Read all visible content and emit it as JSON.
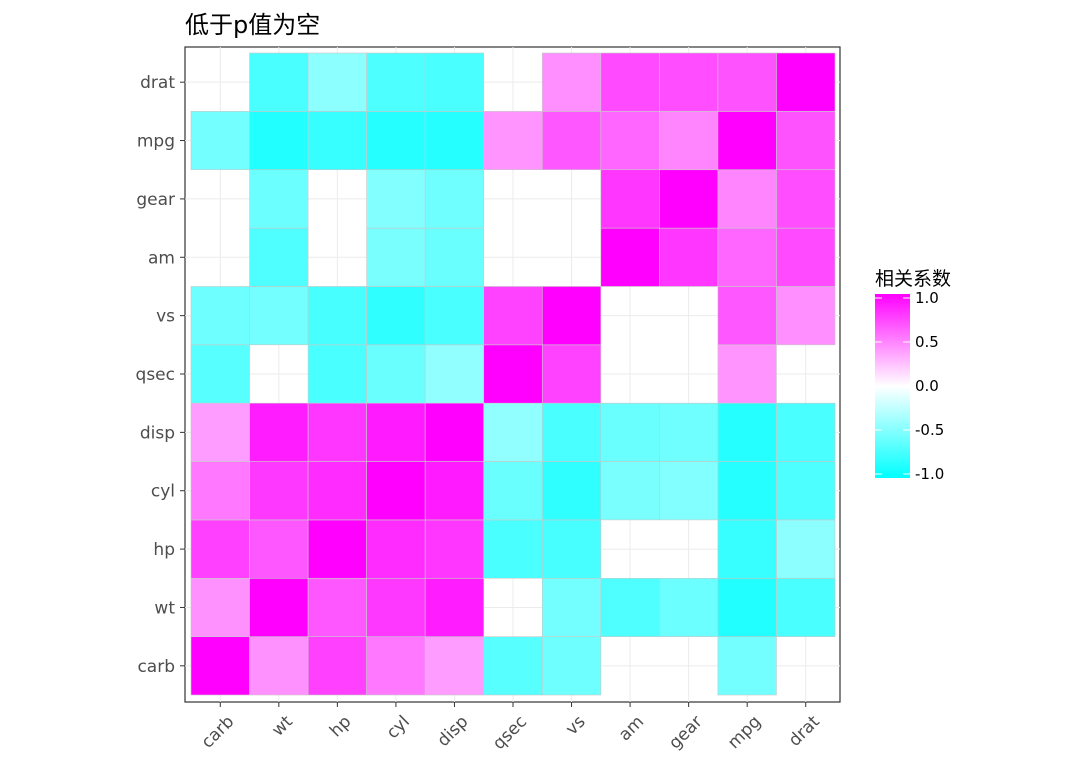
{
  "chart_data": {
    "type": "heatmap",
    "title": "低于p值为空",
    "x": [
      "carb",
      "wt",
      "hp",
      "cyl",
      "disp",
      "qsec",
      "vs",
      "am",
      "gear",
      "mpg",
      "drat"
    ],
    "y": [
      "carb",
      "wt",
      "hp",
      "cyl",
      "disp",
      "qsec",
      "vs",
      "am",
      "gear",
      "mpg",
      "drat"
    ],
    "values": [
      [
        1,
        0.43,
        0.75,
        0.53,
        0.39,
        -0.66,
        -0.57,
        null,
        null,
        -0.55,
        null
      ],
      [
        0.43,
        1,
        0.66,
        0.78,
        0.89,
        null,
        -0.55,
        -0.69,
        -0.58,
        -0.87,
        -0.71
      ],
      [
        0.75,
        0.66,
        1,
        0.83,
        0.79,
        -0.71,
        -0.72,
        null,
        null,
        -0.78,
        -0.45
      ],
      [
        0.53,
        0.78,
        0.83,
        1,
        0.9,
        -0.59,
        -0.81,
        -0.52,
        -0.49,
        -0.85,
        -0.7
      ],
      [
        0.39,
        0.89,
        0.79,
        0.9,
        1,
        -0.43,
        -0.71,
        -0.59,
        -0.56,
        -0.85,
        -0.71
      ],
      [
        -0.66,
        null,
        -0.71,
        -0.59,
        -0.43,
        1,
        0.74,
        null,
        null,
        0.42,
        null
      ],
      [
        -0.57,
        -0.55,
        -0.72,
        -0.81,
        -0.71,
        0.74,
        1,
        null,
        null,
        0.66,
        0.44
      ],
      [
        null,
        -0.69,
        null,
        -0.52,
        -0.59,
        null,
        null,
        1,
        0.79,
        0.6,
        0.71
      ],
      [
        null,
        -0.58,
        null,
        -0.49,
        -0.56,
        null,
        null,
        0.79,
        1,
        0.48,
        0.7
      ],
      [
        -0.55,
        -0.87,
        -0.78,
        -0.85,
        -0.85,
        0.42,
        0.66,
        0.6,
        0.48,
        1,
        0.68
      ],
      [
        null,
        -0.71,
        -0.45,
        -0.7,
        -0.71,
        null,
        0.44,
        0.71,
        0.7,
        0.68,
        1
      ]
    ],
    "colors": {
      "low": "#00FFFF",
      "mid": "#FFFFFF",
      "high": "#FF00FF"
    },
    "legend": {
      "title": "相关系数",
      "lim": [
        -1,
        1
      ],
      "ticks": [
        {
          "value": 1,
          "label": "1.0"
        },
        {
          "value": 0.5,
          "label": "0.5"
        },
        {
          "value": 0,
          "label": "0.0"
        },
        {
          "value": -0.5,
          "label": "-0.5"
        },
        {
          "value": -1,
          "label": "-1.0"
        }
      ]
    }
  }
}
